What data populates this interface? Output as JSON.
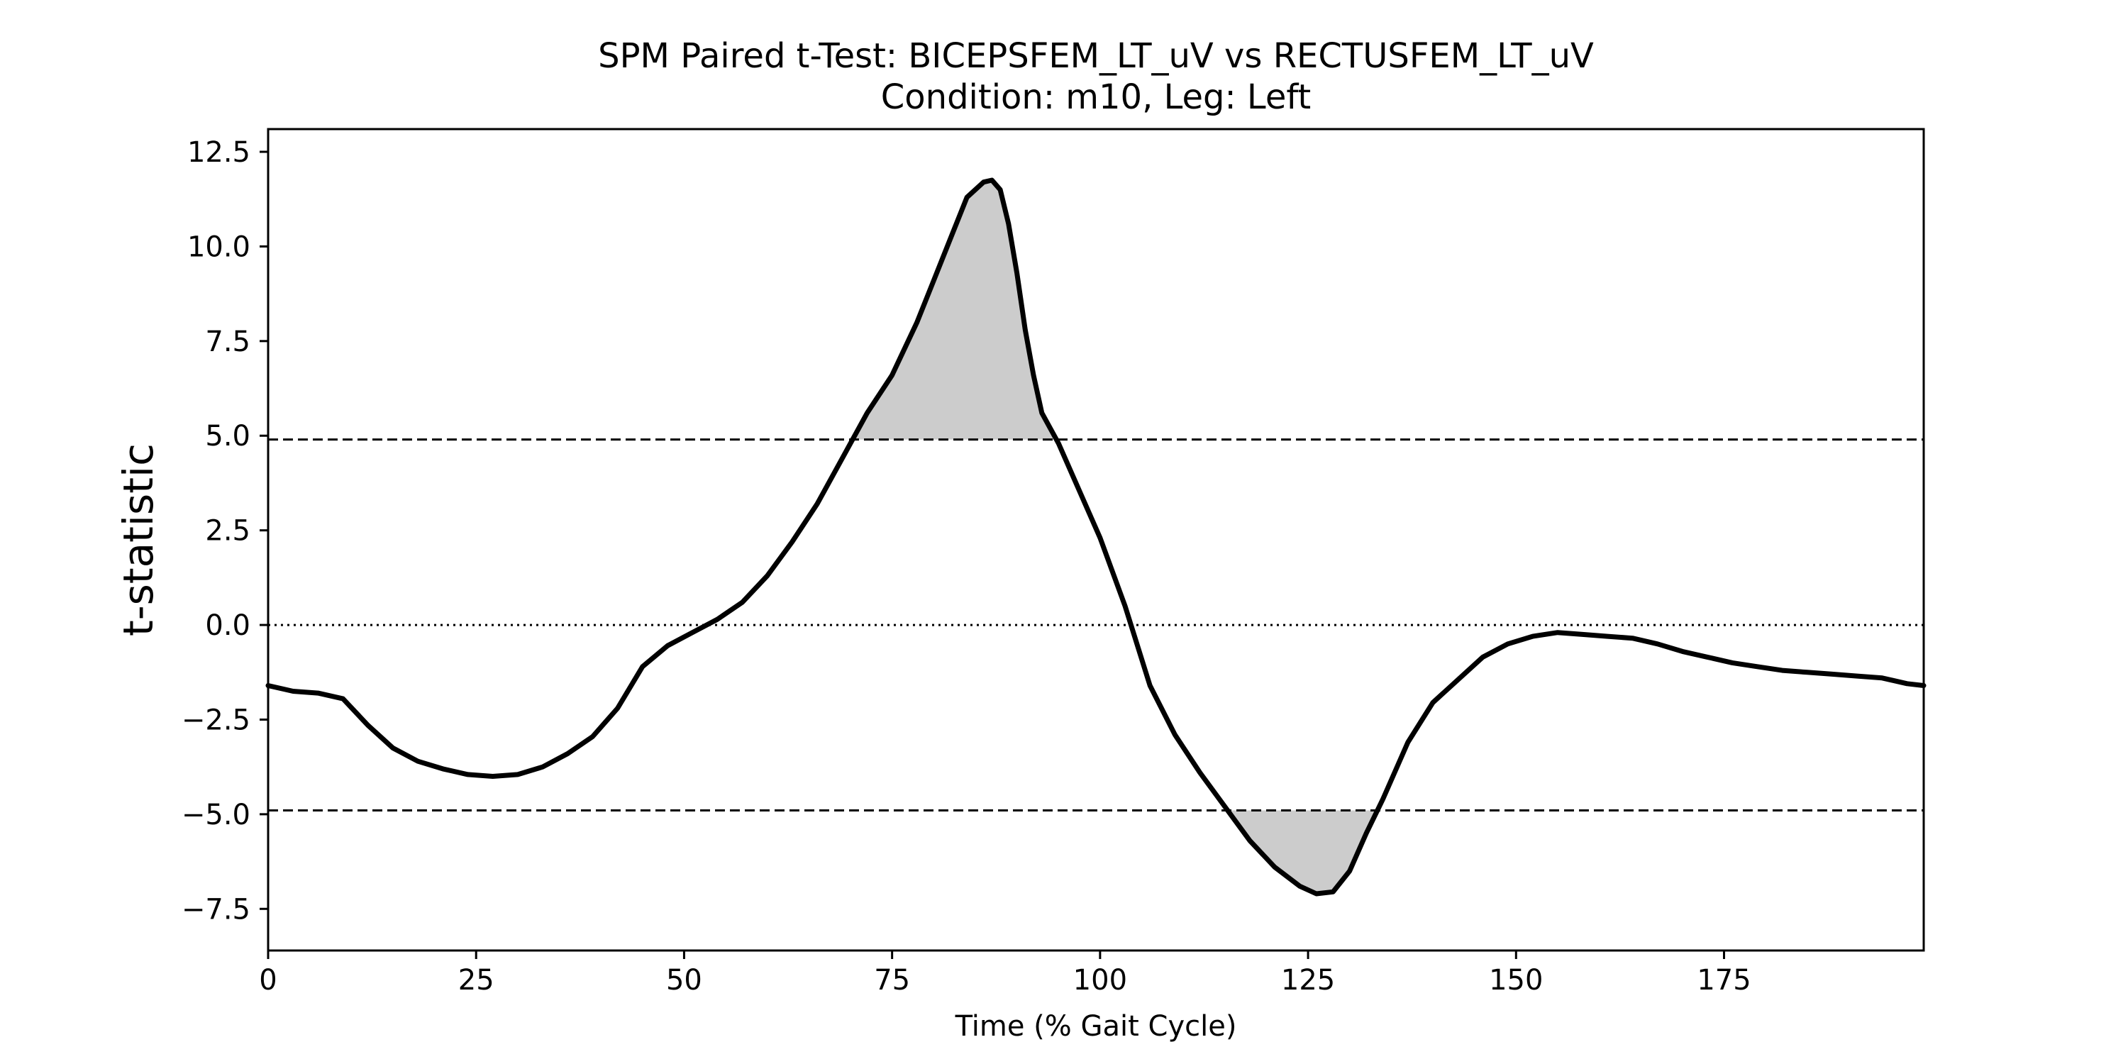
{
  "chart_data": {
    "type": "line",
    "title": "SPM Paired t-Test: BICEPSFEM_LT_uV vs RECTUSFEM_LT_uV",
    "subtitle": "Condition: m10, Leg: Left",
    "xlabel": "Time (% Gait Cycle)",
    "ylabel": "t-statistic",
    "xlim": [
      0,
      199
    ],
    "ylim": [
      -8.6,
      13.1
    ],
    "x_ticks": [
      0,
      25,
      50,
      75,
      100,
      125,
      150,
      175
    ],
    "x_tick_labels": [
      "0",
      "25",
      "50",
      "75",
      "100",
      "125",
      "150",
      "175"
    ],
    "y_ticks": [
      12.5,
      10.0,
      7.5,
      5.0,
      2.5,
      0.0,
      -2.5,
      -5.0,
      -7.5
    ],
    "y_tick_labels": [
      "12.5",
      "10.0",
      "7.5",
      "5.0",
      "2.5",
      "0.0",
      "−2.5",
      "−5.0",
      "−7.5"
    ],
    "threshold": 4.9,
    "zero_line": 0.0,
    "grid": false,
    "series": [
      {
        "x": [
          0,
          3,
          6,
          9,
          12,
          15,
          18,
          21,
          24,
          27,
          30,
          33,
          36,
          39,
          42,
          45,
          48,
          51,
          54,
          57,
          60,
          63,
          66,
          69,
          72,
          75,
          78,
          80,
          82,
          84,
          86,
          87,
          88,
          89,
          90,
          91,
          92,
          93,
          94,
          95,
          97,
          100,
          103,
          106,
          109,
          112,
          115,
          118,
          121,
          124,
          126,
          128,
          130,
          132,
          134,
          137,
          140,
          143,
          146,
          149,
          152,
          155,
          158,
          161,
          164,
          167,
          170,
          173,
          176,
          179,
          182,
          185,
          188,
          191,
          194,
          197,
          199
        ],
        "y": [
          -1.6,
          -1.75,
          -1.8,
          -1.95,
          -2.65,
          -3.25,
          -3.6,
          -3.8,
          -3.95,
          -4.0,
          -3.95,
          -3.75,
          -3.4,
          -2.95,
          -2.2,
          -1.1,
          -0.55,
          -0.2,
          0.15,
          0.6,
          1.3,
          2.2,
          3.2,
          4.4,
          5.6,
          6.6,
          8.0,
          9.1,
          10.2,
          11.3,
          11.7,
          11.75,
          11.5,
          10.6,
          9.3,
          7.8,
          6.6,
          5.6,
          5.2,
          4.8,
          3.8,
          2.3,
          0.5,
          -1.6,
          -2.9,
          -3.9,
          -4.8,
          -5.7,
          -6.4,
          -6.9,
          -7.1,
          -7.05,
          -6.5,
          -5.5,
          -4.6,
          -3.1,
          -2.05,
          -1.45,
          -0.85,
          -0.5,
          -0.3,
          -0.2,
          -0.25,
          -0.3,
          -0.35,
          -0.5,
          -0.7,
          -0.85,
          -1.0,
          -1.1,
          -1.2,
          -1.25,
          -1.3,
          -1.35,
          -1.4,
          -1.55,
          -1.6
        ],
        "color": "#000000"
      }
    ],
    "fill_color": "#cccccc"
  }
}
